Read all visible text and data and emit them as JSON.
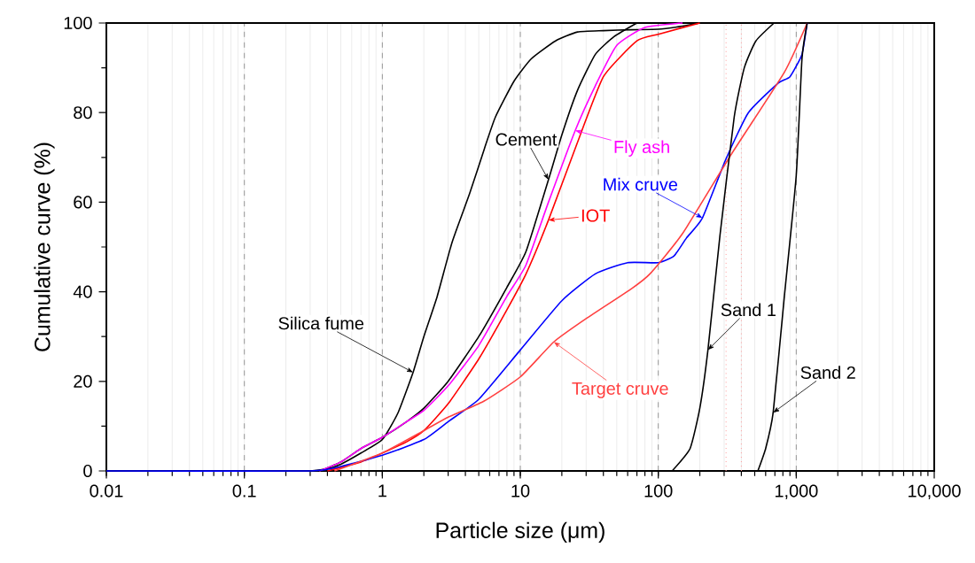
{
  "chart_data": {
    "type": "line",
    "xlabel": "Particle size (μm)",
    "ylabel": "Cumulative curve (%)",
    "log": "x",
    "grid": "x",
    "xlim": [
      0.01,
      10000
    ],
    "ylim": [
      0,
      100
    ],
    "xticks": [
      {
        "value": 0.01,
        "label": "0.01"
      },
      {
        "value": 0.1,
        "label": "0.1"
      },
      {
        "value": 1,
        "label": "1"
      },
      {
        "value": 10,
        "label": "10"
      },
      {
        "value": 100,
        "label": "100"
      },
      {
        "value": 1000,
        "label": "1,000"
      },
      {
        "value": 10000,
        "label": "10,000"
      }
    ],
    "yticks": [
      0,
      20,
      40,
      60,
      80,
      100
    ],
    "series": [
      {
        "name": "Silica fume",
        "color": "#000000",
        "x": [
          0.3,
          0.4,
          0.5,
          0.7,
          1,
          1.3,
          1.67,
          2,
          2.5,
          3.2,
          4.3,
          5.5,
          6.6,
          9,
          12,
          18,
          26,
          40,
          64,
          100,
          150,
          200
        ],
        "values": [
          0,
          0.5,
          1.5,
          4,
          7,
          13,
          22,
          30,
          39,
          51,
          62,
          72,
          79,
          87,
          92,
          96,
          98,
          98.3,
          98.5,
          98.6,
          99.3,
          100
        ]
      },
      {
        "name": "Cement",
        "color": "#000000",
        "x": [
          0.35,
          0.5,
          0.7,
          1,
          1.5,
          2,
          3,
          5,
          8,
          11,
          16,
          20,
          26,
          35,
          48,
          70
        ],
        "values": [
          0,
          2,
          5,
          7.5,
          11,
          14,
          20,
          30,
          41,
          49,
          65,
          75,
          85,
          93,
          97,
          100
        ]
      },
      {
        "name": "Fly ash",
        "color": "#ff00ff",
        "x": [
          0.35,
          0.5,
          0.7,
          1,
          1.5,
          2,
          3,
          5,
          8,
          11,
          16,
          25,
          35,
          50,
          80,
          150
        ],
        "values": [
          0,
          2,
          5,
          7.5,
          11,
          13.5,
          19,
          28,
          39,
          46,
          60,
          76,
          86,
          95,
          99,
          100
        ]
      },
      {
        "name": "IOT",
        "color": "#ff0000",
        "x": [
          0.4,
          0.7,
          1,
          1.5,
          2,
          3,
          5,
          8,
          11,
          16,
          25,
          40,
          70,
          100,
          200
        ],
        "values": [
          0,
          2,
          4,
          6.5,
          9,
          15,
          25,
          36,
          44,
          56,
          72,
          88,
          96,
          97.5,
          100
        ]
      },
      {
        "name": "Mix cruve",
        "color": "#0000ff",
        "x": [
          0.01,
          0.3,
          0.5,
          1,
          2,
          3,
          5,
          10,
          20,
          35,
          60,
          100,
          130,
          160,
          209,
          309,
          450,
          740,
          900,
          1100,
          1200
        ],
        "values": [
          0,
          0,
          1,
          3.5,
          7,
          11,
          16,
          27,
          38,
          44,
          46.5,
          46.5,
          48,
          52,
          56.5,
          69.6,
          80,
          86.6,
          88,
          93,
          100
        ]
      },
      {
        "name": "Target cruve",
        "color": "#ff4040",
        "x": [
          0.45,
          1,
          2,
          3,
          5.4,
          10,
          17.5,
          30,
          64,
          87,
          150,
          340,
          820,
          1200
        ],
        "values": [
          0,
          4,
          9,
          12,
          15.5,
          21,
          28.8,
          34,
          40.7,
          44,
          53,
          70.8,
          89,
          100
        ]
      },
      {
        "name": "Sand 1",
        "color": "#000000",
        "x": [
          126,
          170,
          200,
          229,
          280,
          355,
          420,
          510,
          690
        ],
        "values": [
          0,
          5,
          14,
          27,
          52.6,
          79,
          90,
          96,
          100
        ]
      },
      {
        "name": "Sand 2",
        "color": "#000000",
        "x": [
          527,
          600,
          680,
          820,
          1000,
          1100,
          1200
        ],
        "values": [
          0,
          5,
          13,
          39,
          66,
          92,
          100
        ]
      }
    ],
    "ref_lines": [
      {
        "axis": "x",
        "value": 310,
        "color": "#ff9999",
        "line_style": "dotted"
      },
      {
        "axis": "x",
        "value": 400,
        "color": "#ff9999",
        "line_style": "dotted"
      }
    ]
  }
}
